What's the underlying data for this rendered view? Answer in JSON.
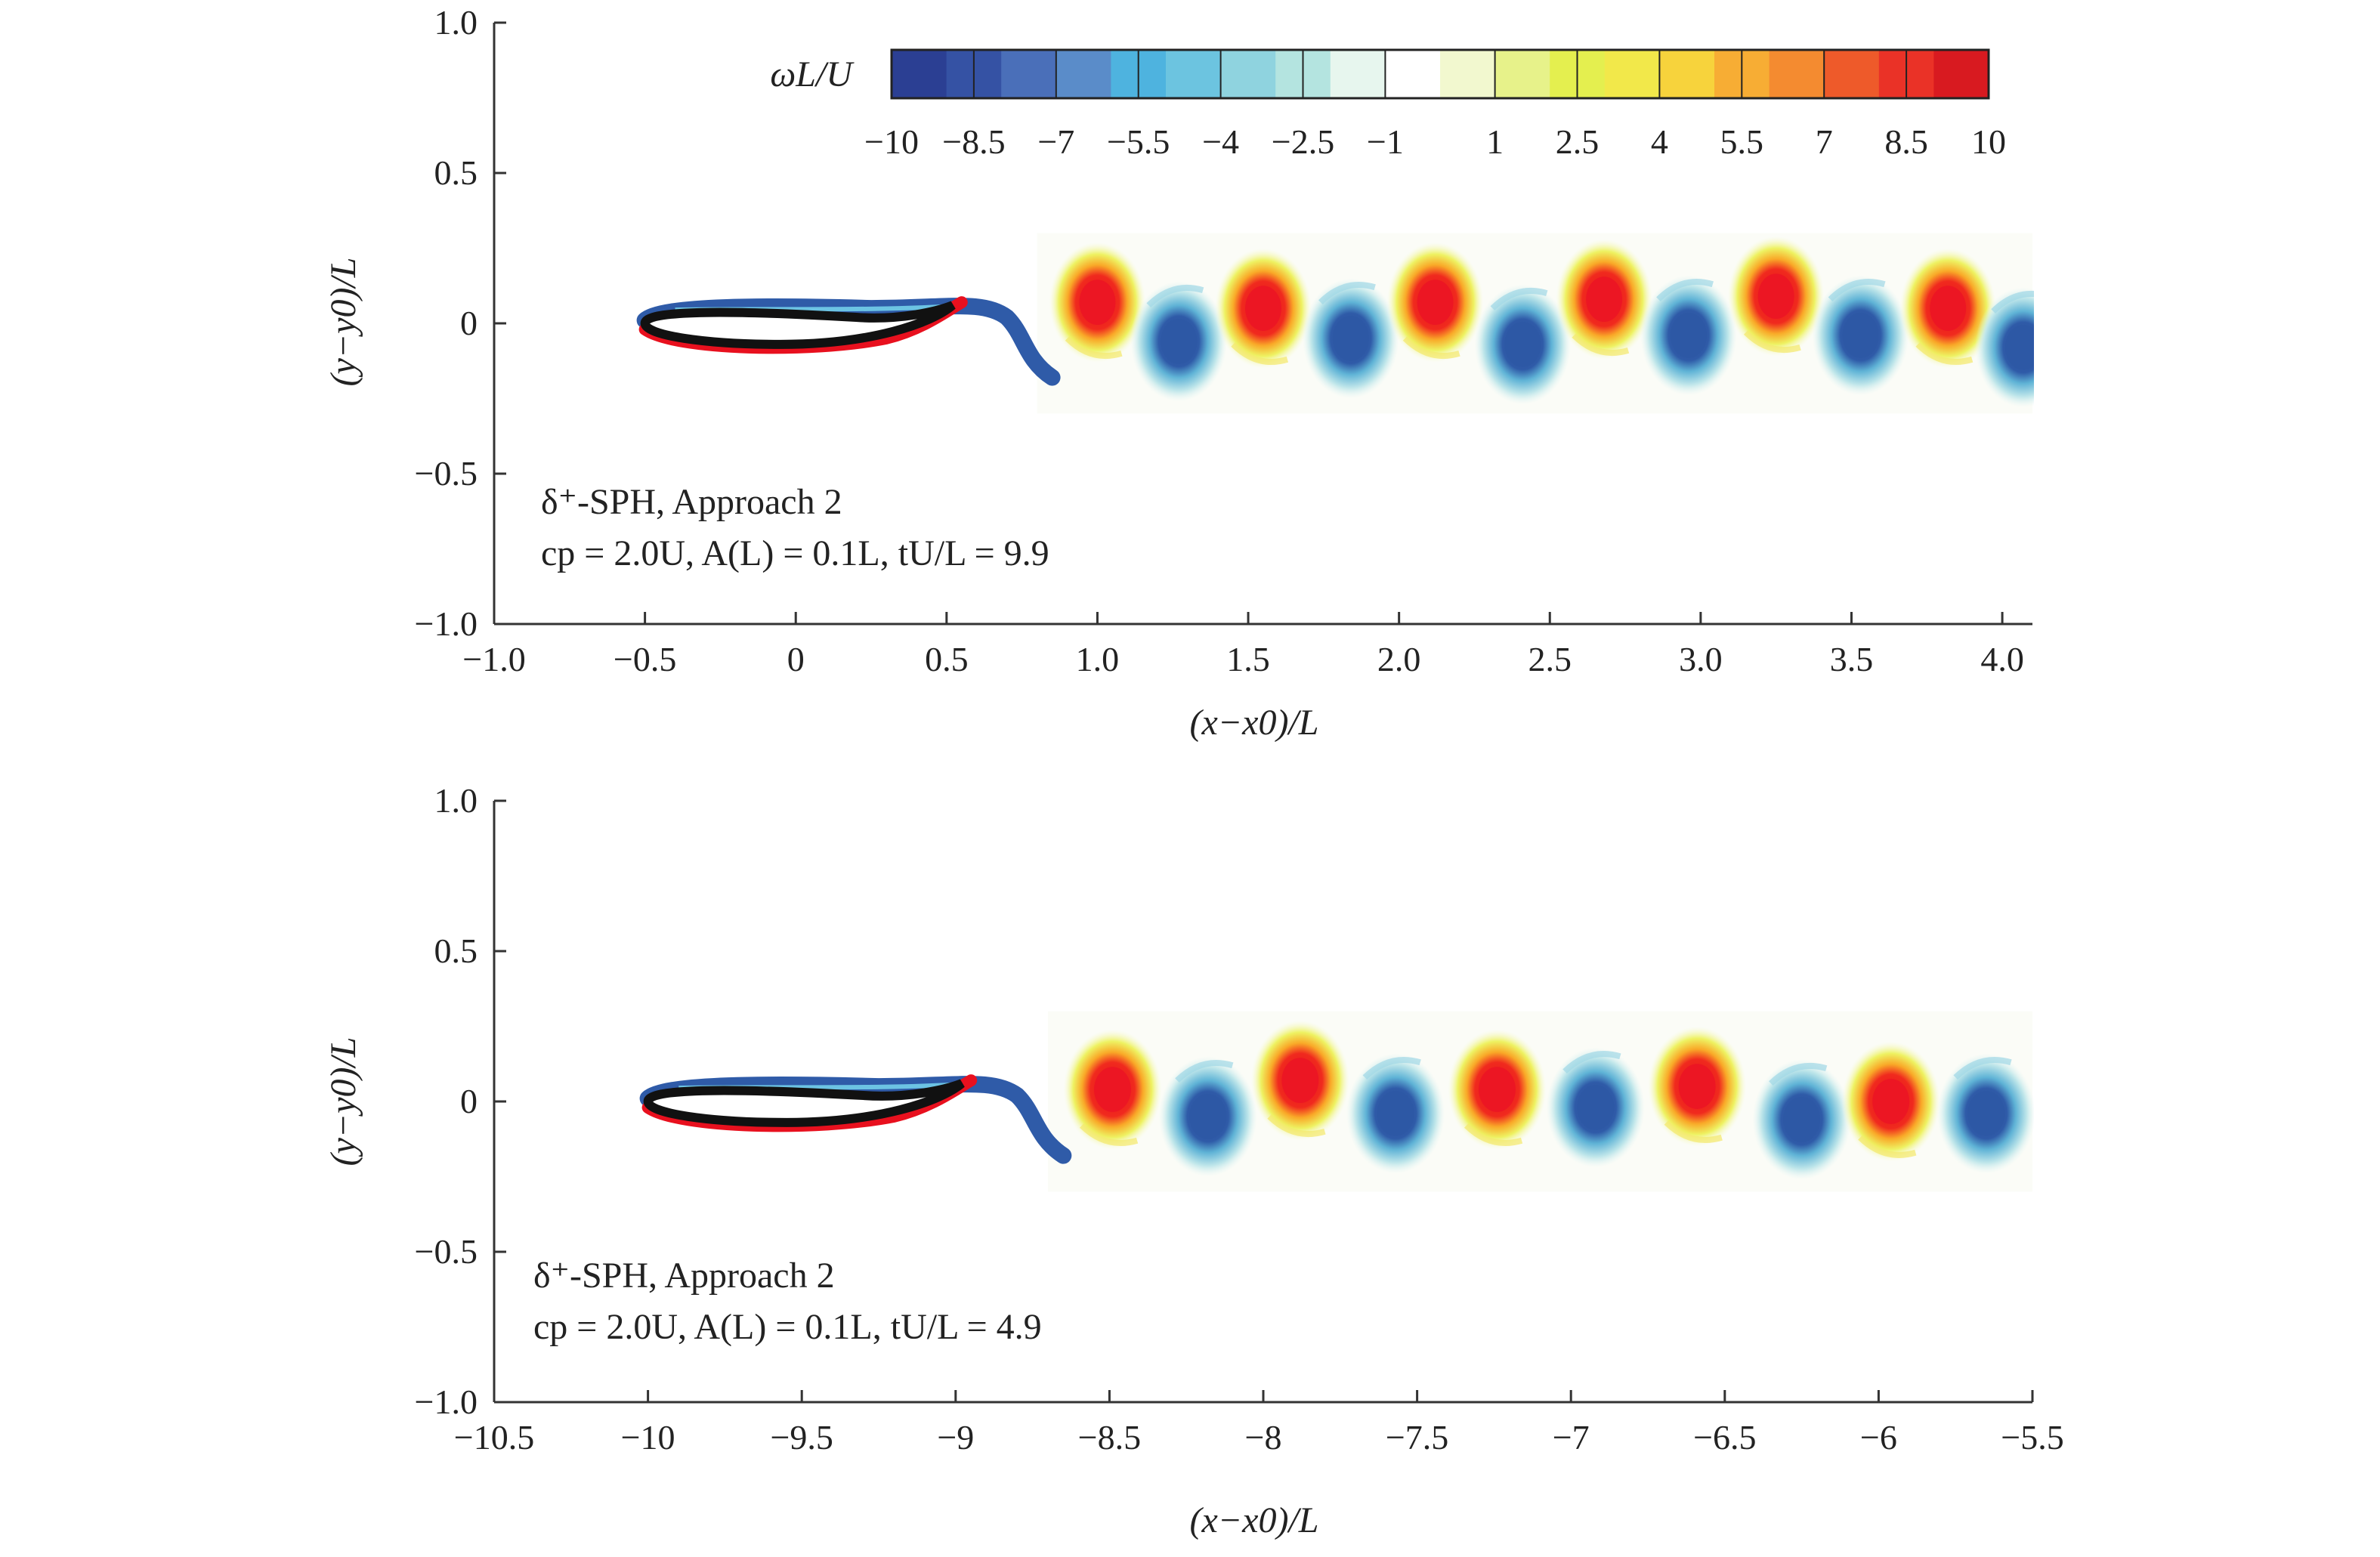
{
  "chart_data": [
    {
      "type": "heatmap",
      "title": "",
      "xlabel": "(x−x0)/L",
      "ylabel": "(y−y0)/L",
      "xlim": [
        -1.0,
        4.1
      ],
      "ylim": [
        -1.0,
        1.0
      ],
      "x_ticks": [
        -1.0,
        -0.5,
        0,
        0.5,
        1.0,
        1.5,
        2.0,
        2.5,
        3.0,
        3.5,
        4.0
      ],
      "x_tick_labels": [
        "−1.0",
        "−0.5",
        "0",
        "0.5",
        "1.0",
        "1.5",
        "2.0",
        "2.5",
        "3.0",
        "3.5",
        "4.0"
      ],
      "y_ticks": [
        -1.0,
        -0.5,
        0,
        0.5,
        1.0
      ],
      "y_tick_labels": [
        "−1.0",
        "−0.5",
        "0",
        "0.5",
        "1.0"
      ],
      "annotation_line1": "δ⁺-SPH, Approach 2",
      "annotation_line2": "cp = 2.0U, A(L) = 0.1L, tU/L = 9.9",
      "colorbar": {
        "label": "ωL/U",
        "min": -10,
        "max": 10,
        "tick_values": [
          -10,
          -8.5,
          -7,
          -5.5,
          -4,
          -2.5,
          -1,
          1,
          2.5,
          4,
          5.5,
          7,
          8.5,
          10
        ],
        "tick_labels": [
          "−10",
          "−8.5",
          "−7",
          "−5.5",
          "−4",
          "−2.5",
          "−1",
          "1",
          "2.5",
          "4",
          "5.5",
          "7",
          "8.5",
          "10"
        ]
      },
      "body": {
        "leading_edge_x": -0.5,
        "trailing_edge_x": 0.5
      },
      "vortices": [
        {
          "x": 1.0,
          "y": 0.07,
          "sign": "positive"
        },
        {
          "x": 1.27,
          "y": -0.06,
          "sign": "negative"
        },
        {
          "x": 1.55,
          "y": 0.05,
          "sign": "positive"
        },
        {
          "x": 1.84,
          "y": -0.05,
          "sign": "negative"
        },
        {
          "x": 2.12,
          "y": 0.07,
          "sign": "positive"
        },
        {
          "x": 2.41,
          "y": -0.07,
          "sign": "negative"
        },
        {
          "x": 2.68,
          "y": 0.08,
          "sign": "positive"
        },
        {
          "x": 2.96,
          "y": -0.04,
          "sign": "negative"
        },
        {
          "x": 3.25,
          "y": 0.09,
          "sign": "positive"
        },
        {
          "x": 3.53,
          "y": -0.04,
          "sign": "negative"
        },
        {
          "x": 3.82,
          "y": 0.05,
          "sign": "positive"
        },
        {
          "x": 4.07,
          "y": -0.08,
          "sign": "negative"
        }
      ]
    },
    {
      "type": "heatmap",
      "title": "",
      "xlabel": "(x−x0)/L",
      "ylabel": "(y−y0)/L",
      "xlim": [
        -10.5,
        -5.5
      ],
      "ylim": [
        -1.0,
        1.0
      ],
      "x_ticks": [
        -10.5,
        -10,
        -9.5,
        -9,
        -8.5,
        -8,
        -7.5,
        -7,
        -6.5,
        -6,
        -5.5
      ],
      "x_tick_labels": [
        "−10.5",
        "−10",
        "−9.5",
        "−9",
        "−8.5",
        "−8",
        "−7.5",
        "−7",
        "−6.5",
        "−6",
        "−5.5"
      ],
      "y_ticks": [
        -1.0,
        -0.5,
        0,
        0.5,
        1.0
      ],
      "y_tick_labels": [
        "−1.0",
        "−0.5",
        "0",
        "0.5",
        "1.0"
      ],
      "annotation_line1": "δ⁺-SPH, Approach 2",
      "annotation_line2": "cp = 2.0U, A(L) = 0.1L, tU/L = 4.9",
      "body": {
        "leading_edge_x": -10.0,
        "trailing_edge_x": -9.0
      },
      "vortices": [
        {
          "x": -8.49,
          "y": 0.04,
          "sign": "positive"
        },
        {
          "x": -8.18,
          "y": -0.05,
          "sign": "negative"
        },
        {
          "x": -7.88,
          "y": 0.07,
          "sign": "positive"
        },
        {
          "x": -7.57,
          "y": -0.04,
          "sign": "negative"
        },
        {
          "x": -7.24,
          "y": 0.04,
          "sign": "positive"
        },
        {
          "x": -6.92,
          "y": -0.02,
          "sign": "negative"
        },
        {
          "x": -6.59,
          "y": 0.05,
          "sign": "positive"
        },
        {
          "x": -6.25,
          "y": -0.06,
          "sign": "negative"
        },
        {
          "x": -5.96,
          "y": 0.0,
          "sign": "positive"
        },
        {
          "x": -5.65,
          "y": -0.04,
          "sign": "negative"
        }
      ]
    }
  ]
}
